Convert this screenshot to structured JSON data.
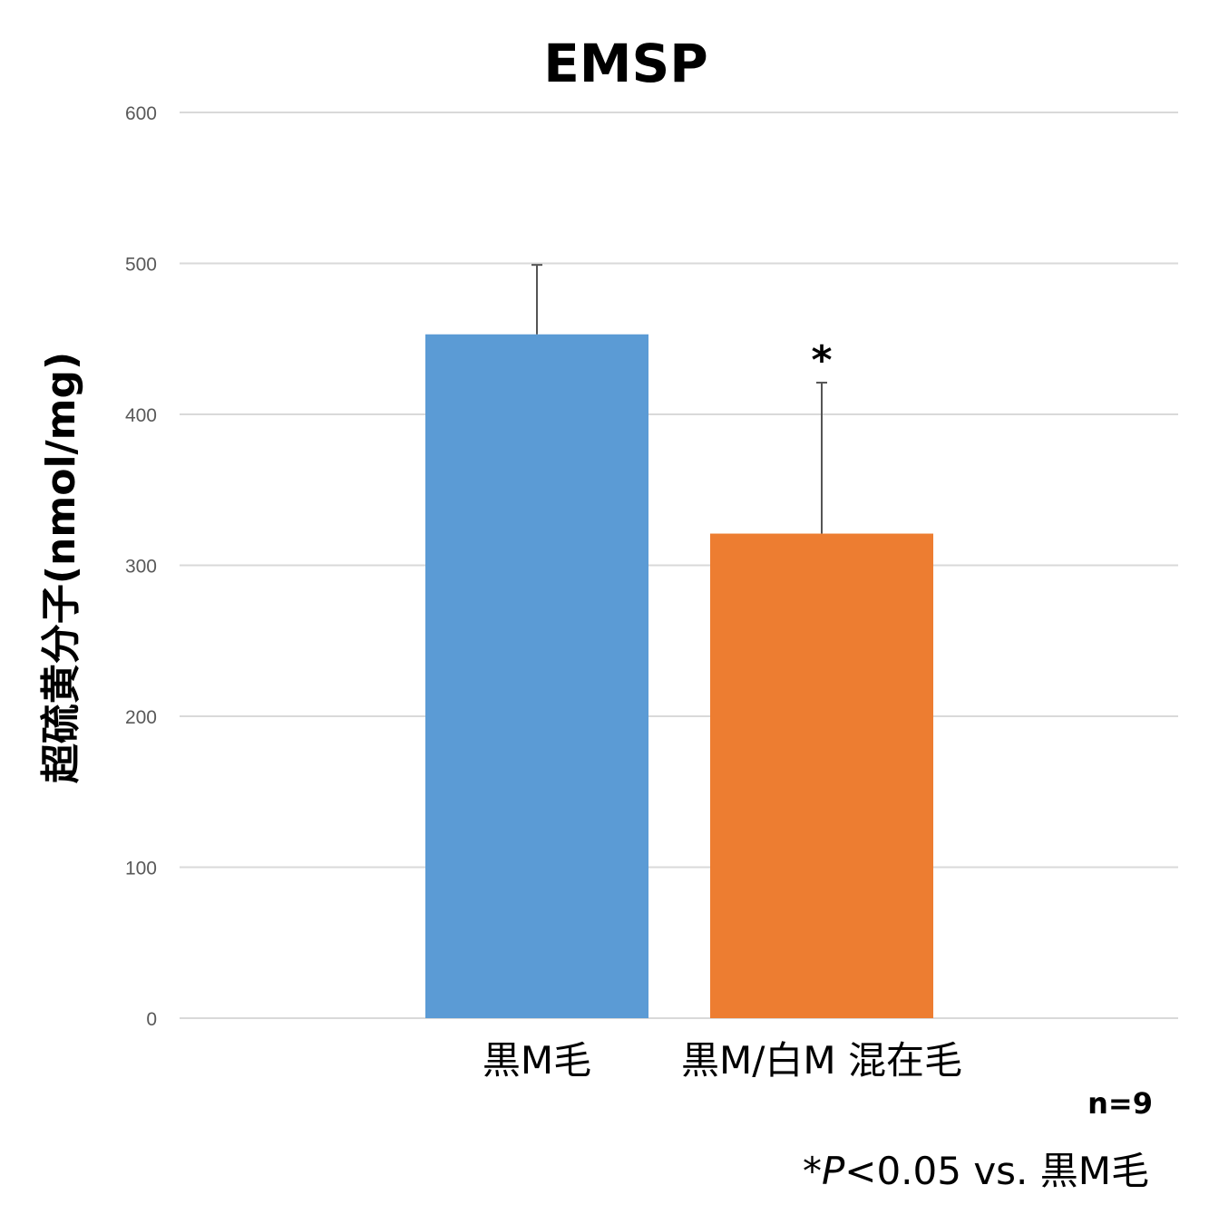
{
  "chart_data": {
    "type": "bar",
    "title": "EMSP",
    "ylabel": "超硫黄分子(nmol/mg)",
    "xlabel": "",
    "categories": [
      "黒M毛",
      "黒M/白M 混在毛"
    ],
    "values": [
      453,
      321
    ],
    "error_bars": [
      46,
      100
    ],
    "significance_markers": [
      "",
      "*"
    ],
    "colors": [
      "#5b9bd5",
      "#ed7d31"
    ],
    "ylim": [
      0,
      600
    ],
    "yticks": [
      0,
      100,
      200,
      300,
      400,
      500,
      600
    ],
    "grid": true,
    "legend": "none"
  },
  "notes": {
    "n_label": "n=9",
    "p_prefix": "*",
    "p_italic": "P",
    "p_rest": "<0.05 vs. 黒M毛"
  }
}
